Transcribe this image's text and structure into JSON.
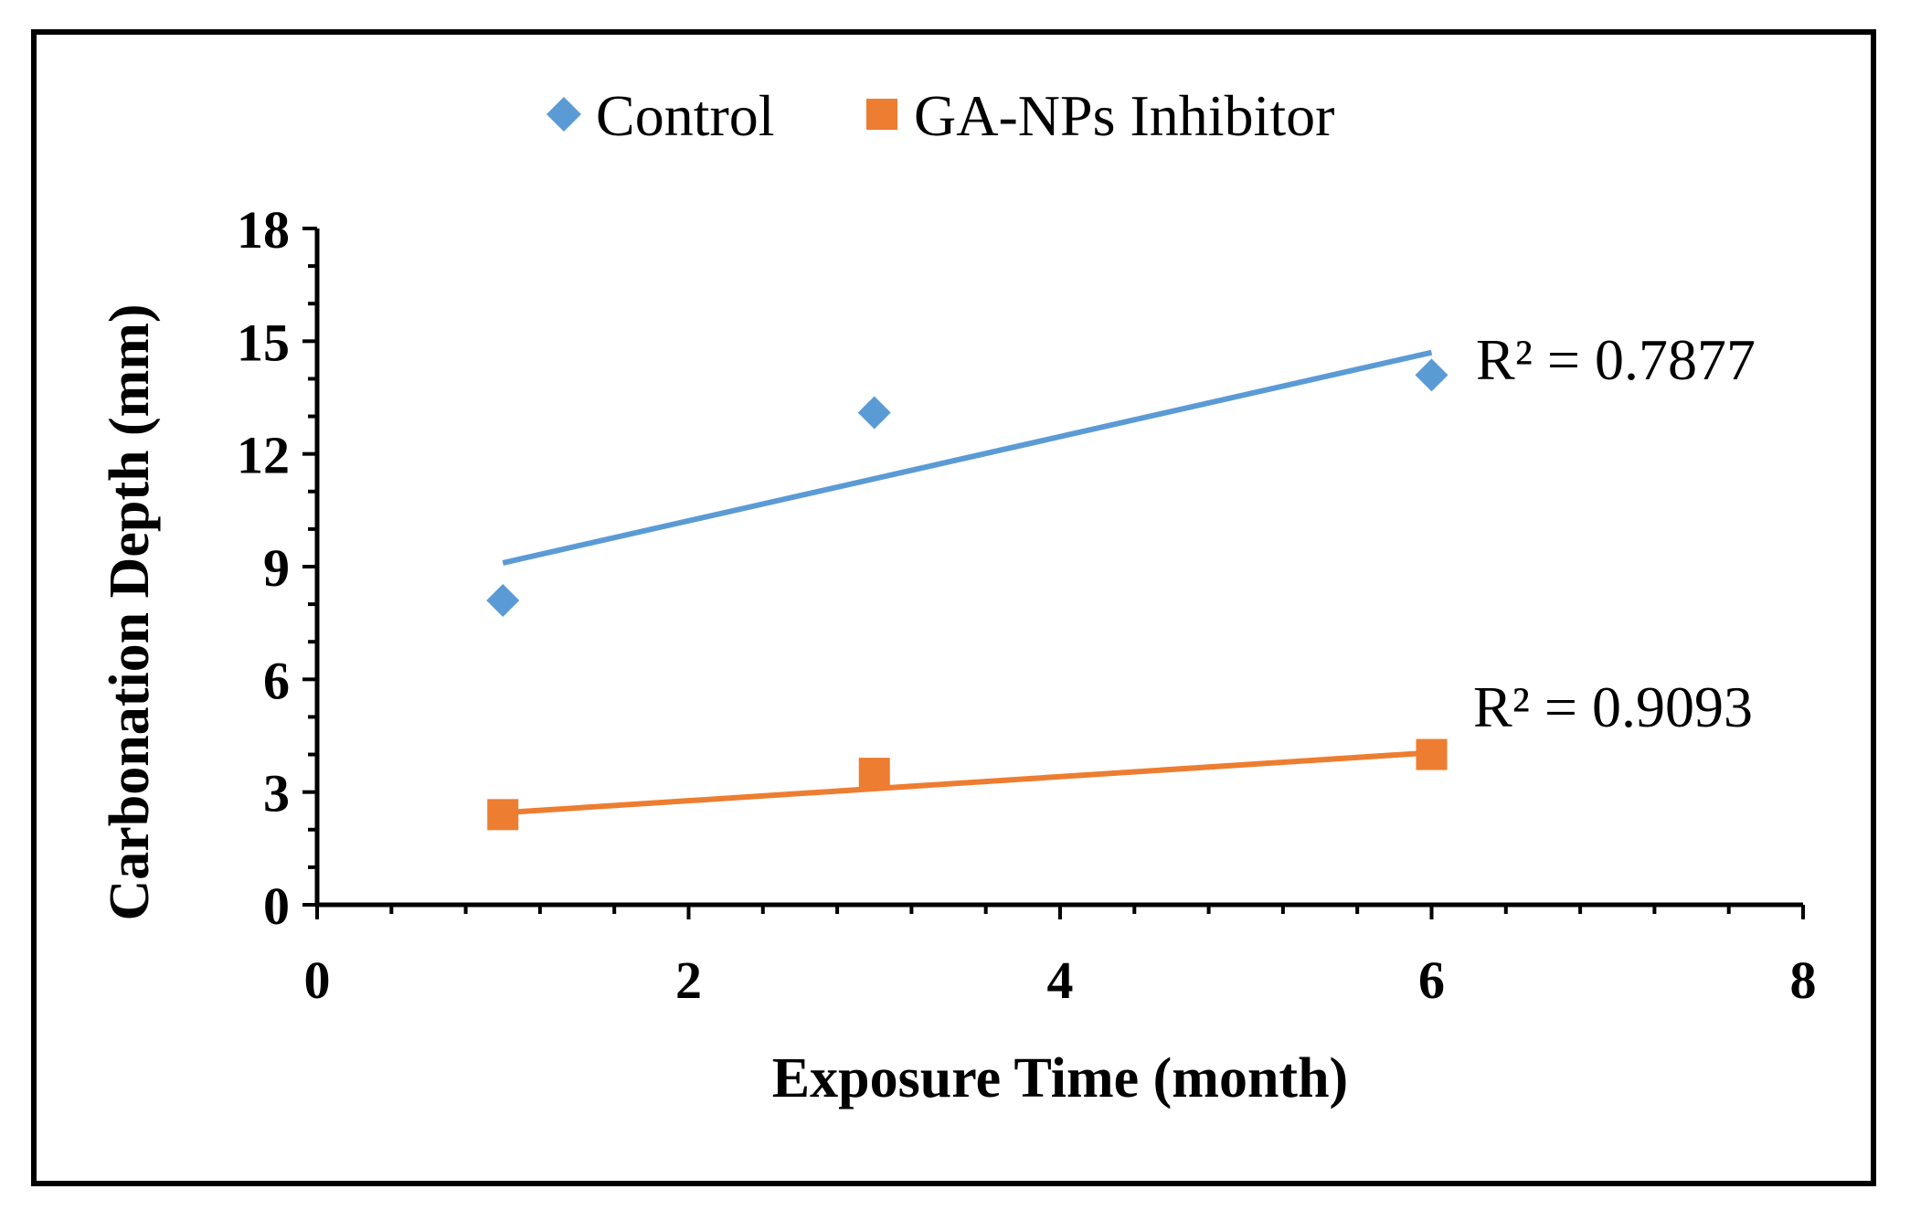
{
  "chart_data": {
    "type": "scatter",
    "title": "",
    "xlabel": "Exposure Time (month)",
    "ylabel": "Carbonation Depth (mm)",
    "xlim": [
      0,
      8
    ],
    "ylim": [
      0,
      18
    ],
    "xticks": [
      0,
      2,
      4,
      6,
      8
    ],
    "yticks": [
      0,
      3,
      6,
      9,
      12,
      15,
      18
    ],
    "xtick_labels": [
      "0",
      "2",
      "4",
      "6",
      "8"
    ],
    "ytick_labels": [
      "0",
      "3",
      "6",
      "9",
      "12",
      "15",
      "18"
    ],
    "grid": false,
    "legend_position": "top-center",
    "series": [
      {
        "name": "Control",
        "marker": "diamond",
        "color": "#5B9BD5",
        "x": [
          1,
          3,
          6
        ],
        "y": [
          8.1,
          13.1,
          14.1
        ],
        "trendline": {
          "x": [
            1,
            6
          ],
          "y": [
            9.1,
            14.7
          ]
        },
        "r2_label": "R² = 0.7877"
      },
      {
        "name": "GA-NPs Inhibitor",
        "marker": "square",
        "color": "#ED7D31",
        "x": [
          1,
          3,
          6
        ],
        "y": [
          2.4,
          3.5,
          4.0
        ],
        "trendline": {
          "x": [
            1,
            6
          ],
          "y": [
            2.45,
            4.05
          ]
        },
        "r2_label": "R² = 0.9093"
      }
    ]
  }
}
